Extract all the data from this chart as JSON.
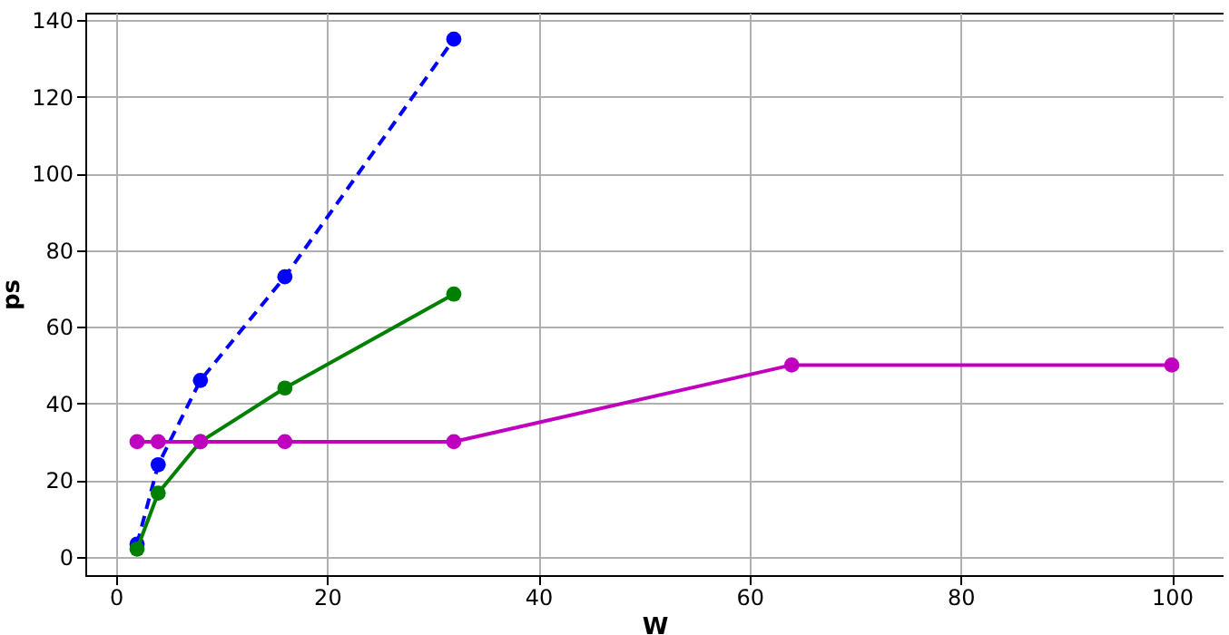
{
  "chart_data": {
    "type": "line",
    "xlabel": "W",
    "ylabel": "ps",
    "x": [
      2,
      4,
      8,
      16,
      32
    ],
    "series": [
      {
        "color": "#0000ff",
        "line_style": "dashed",
        "values": [
          3.3,
          24,
          46,
          73,
          135
        ]
      },
      {
        "color": "#008000",
        "line_style": "solid",
        "values": [
          2,
          16.6,
          30,
          44,
          68.5
        ]
      },
      {
        "color": "#bf00bf",
        "line_style": "solid",
        "x": [
          2,
          4,
          8,
          16,
          32,
          64,
          100
        ],
        "values": [
          30,
          30,
          30,
          30,
          30,
          50,
          50
        ]
      }
    ],
    "xlim": [
      -2.9,
      104.9
    ],
    "xticks": [
      0,
      20,
      40,
      60,
      80,
      100
    ],
    "ylim": [
      -4.8,
      141.9
    ],
    "yticks": [
      0,
      20,
      40,
      60,
      80,
      100,
      120,
      140
    ],
    "grid": true,
    "marker": "circle"
  }
}
